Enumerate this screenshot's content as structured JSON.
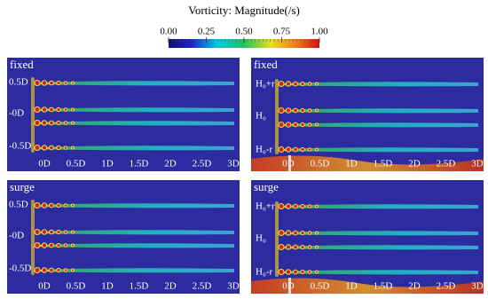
{
  "title": "Vorticity: Magnitude(/s)",
  "colorbar": {
    "ticks": [
      {
        "value": 0,
        "label": "0.00"
      },
      {
        "value": 0.25,
        "label": "0.25"
      },
      {
        "value": 0.5,
        "label": "0.50"
      },
      {
        "value": 0.75,
        "label": "0.75"
      },
      {
        "value": 1,
        "label": "1.00"
      }
    ]
  },
  "panels": [
    {
      "label": "fixed",
      "y_labels": [
        "0.5D",
        "-0D",
        "-0.5D"
      ],
      "x_labels": [
        "0D",
        "0.5D",
        "1D",
        "1.5D",
        "2D",
        "2.5D",
        "3D"
      ]
    },
    {
      "label": "fixed",
      "y_labels": [
        "H₀+r",
        "H₀",
        "H₀-r"
      ],
      "x_labels": [
        "0D",
        "0.5D",
        "1D",
        "1.5D",
        "2D",
        "2.5D",
        "3D"
      ]
    },
    {
      "label": "surge",
      "y_labels": [
        "0.5D",
        "-0D",
        "-0.5D"
      ],
      "x_labels": [
        "0D",
        "0.5D",
        "1D",
        "1.5D",
        "2D",
        "2.5D",
        "3D"
      ]
    },
    {
      "label": "surge",
      "y_labels": [
        "H₀+r",
        "H₀",
        "H₀-r"
      ],
      "x_labels": [
        "0D",
        "0.5D",
        "1D",
        "1.5D",
        "2D",
        "2.5D",
        "3D"
      ]
    }
  ]
}
